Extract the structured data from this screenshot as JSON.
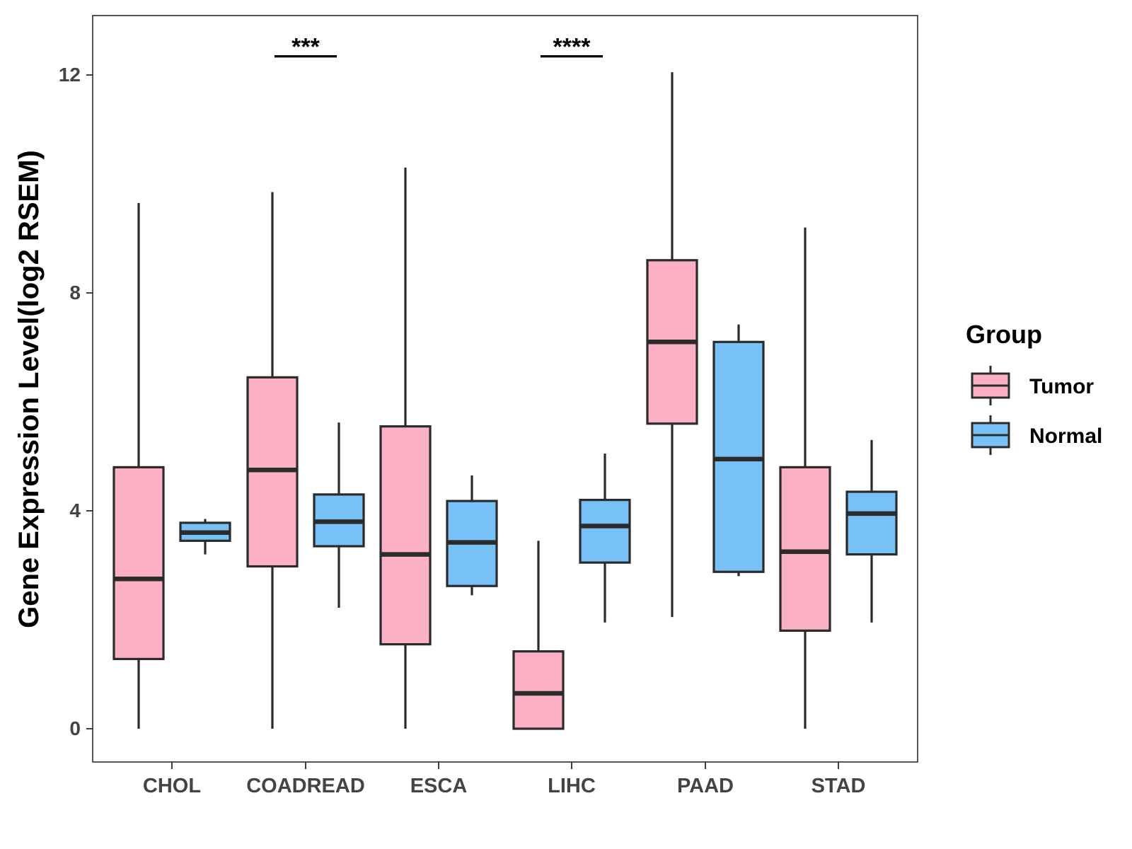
{
  "chart_data": {
    "type": "boxplot",
    "title": "",
    "xlabel": "",
    "ylabel": "Gene Expression Level(log2 RSEM)",
    "ylim": [
      -0.6,
      13.1
    ],
    "yticks": [
      0,
      4,
      8,
      12
    ],
    "ytick_labels": [
      "0",
      "4",
      "8",
      "12"
    ],
    "grid": false,
    "categories": [
      "CHOL",
      "COADREAD",
      "ESCA",
      "LIHC",
      "PAAD",
      "STAD"
    ],
    "legend": {
      "title": "Group",
      "position": "right",
      "entries": [
        "Tumor",
        "Normal"
      ]
    },
    "colors": {
      "Tumor": "#FBB0C3",
      "Normal": "#77C1F7",
      "outline": "#2b2b2b"
    },
    "series": [
      {
        "name": "Tumor",
        "boxes": [
          {
            "category": "CHOL",
            "min": 0.0,
            "q1": 1.28,
            "median": 2.75,
            "q3": 4.8,
            "max": 9.65
          },
          {
            "category": "COADREAD",
            "min": 0.0,
            "q1": 2.98,
            "median": 4.75,
            "q3": 6.45,
            "max": 9.85
          },
          {
            "category": "ESCA",
            "min": 0.0,
            "q1": 1.55,
            "median": 3.2,
            "q3": 5.55,
            "max": 10.3
          },
          {
            "category": "LIHC",
            "min": 0.0,
            "q1": 0.0,
            "median": 0.65,
            "q3": 1.42,
            "max": 3.45
          },
          {
            "category": "PAAD",
            "min": 2.05,
            "q1": 5.6,
            "median": 7.1,
            "q3": 8.6,
            "max": 12.05
          },
          {
            "category": "STAD",
            "min": 0.0,
            "q1": 1.8,
            "median": 3.25,
            "q3": 4.8,
            "max": 9.2
          }
        ]
      },
      {
        "name": "Normal",
        "boxes": [
          {
            "category": "CHOL",
            "min": 3.2,
            "q1": 3.45,
            "median": 3.6,
            "q3": 3.78,
            "max": 3.85
          },
          {
            "category": "COADREAD",
            "min": 2.22,
            "q1": 3.35,
            "median": 3.8,
            "q3": 4.3,
            "max": 5.62
          },
          {
            "category": "ESCA",
            "min": 2.45,
            "q1": 2.62,
            "median": 3.42,
            "q3": 4.18,
            "max": 4.65
          },
          {
            "category": "LIHC",
            "min": 1.95,
            "q1": 3.05,
            "median": 3.72,
            "q3": 4.2,
            "max": 5.05
          },
          {
            "category": "PAAD",
            "min": 2.8,
            "q1": 2.88,
            "median": 4.95,
            "q3": 7.1,
            "max": 7.42
          },
          {
            "category": "STAD",
            "min": 1.95,
            "q1": 3.2,
            "median": 3.95,
            "q3": 4.35,
            "max": 5.3
          }
        ]
      }
    ],
    "annotations": [
      {
        "category": "COADREAD",
        "text": "***",
        "y": 12.42
      },
      {
        "category": "LIHC",
        "text": "****",
        "y": 12.42
      }
    ]
  }
}
